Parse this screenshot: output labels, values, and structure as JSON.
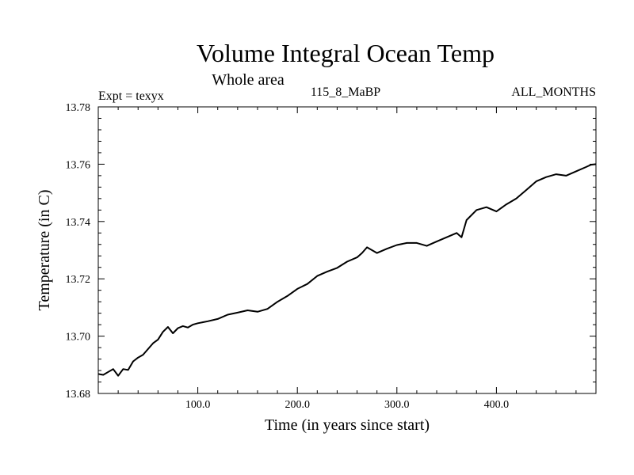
{
  "chart_data": {
    "type": "line",
    "title": "Volume Integral Ocean Temp",
    "subtitle": "Whole area",
    "header_left": "Expt = texyx",
    "header_center": "115_8_MaBP",
    "header_right": "ALL_MONTHS",
    "xlabel": "Time (in years since start)",
    "ylabel": "Temperature (in C)",
    "xlim": [
      0,
      500
    ],
    "ylim": [
      13.68,
      13.78
    ],
    "xticks": [
      {
        "value": 100,
        "label": "100.0"
      },
      {
        "value": 200,
        "label": "200.0"
      },
      {
        "value": 300,
        "label": "300.0"
      },
      {
        "value": 400,
        "label": "400.0"
      }
    ],
    "yticks": [
      {
        "value": 13.68,
        "label": "13.68"
      },
      {
        "value": 13.7,
        "label": "13.70"
      },
      {
        "value": 13.72,
        "label": "13.72"
      },
      {
        "value": 13.74,
        "label": "13.74"
      },
      {
        "value": 13.76,
        "label": "13.76"
      },
      {
        "value": 13.78,
        "label": "13.78"
      }
    ],
    "grid": false,
    "series": [
      {
        "color": "#000000",
        "x": [
          0,
          5,
          10,
          15,
          20,
          25,
          30,
          35,
          40,
          45,
          50,
          55,
          60,
          65,
          70,
          75,
          80,
          85,
          90,
          95,
          100,
          110,
          120,
          130,
          140,
          150,
          160,
          170,
          180,
          190,
          200,
          210,
          220,
          230,
          240,
          250,
          260,
          265,
          270,
          280,
          290,
          300,
          310,
          320,
          330,
          340,
          350,
          360,
          365,
          370,
          380,
          390,
          400,
          410,
          420,
          430,
          440,
          450,
          460,
          470,
          480,
          490,
          495,
          500
        ],
        "y": [
          13.6868,
          13.6865,
          13.6875,
          13.6885,
          13.6862,
          13.6885,
          13.6882,
          13.6912,
          13.6925,
          13.6935,
          13.6955,
          13.6975,
          13.6988,
          13.7015,
          13.7032,
          13.701,
          13.7028,
          13.7035,
          13.703,
          13.704,
          13.7045,
          13.7052,
          13.706,
          13.7075,
          13.7082,
          13.709,
          13.7085,
          13.7095,
          13.712,
          13.714,
          13.7165,
          13.7182,
          13.721,
          13.7225,
          13.7238,
          13.726,
          13.7275,
          13.729,
          13.731,
          13.729,
          13.7305,
          13.7318,
          13.7325,
          13.7325,
          13.7315,
          13.733,
          13.7345,
          13.736,
          13.7345,
          13.7405,
          13.744,
          13.745,
          13.7435,
          13.746,
          13.748,
          13.751,
          13.754,
          13.7555,
          13.7565,
          13.756,
          13.7575,
          13.759,
          13.7598,
          13.76
        ]
      }
    ]
  }
}
